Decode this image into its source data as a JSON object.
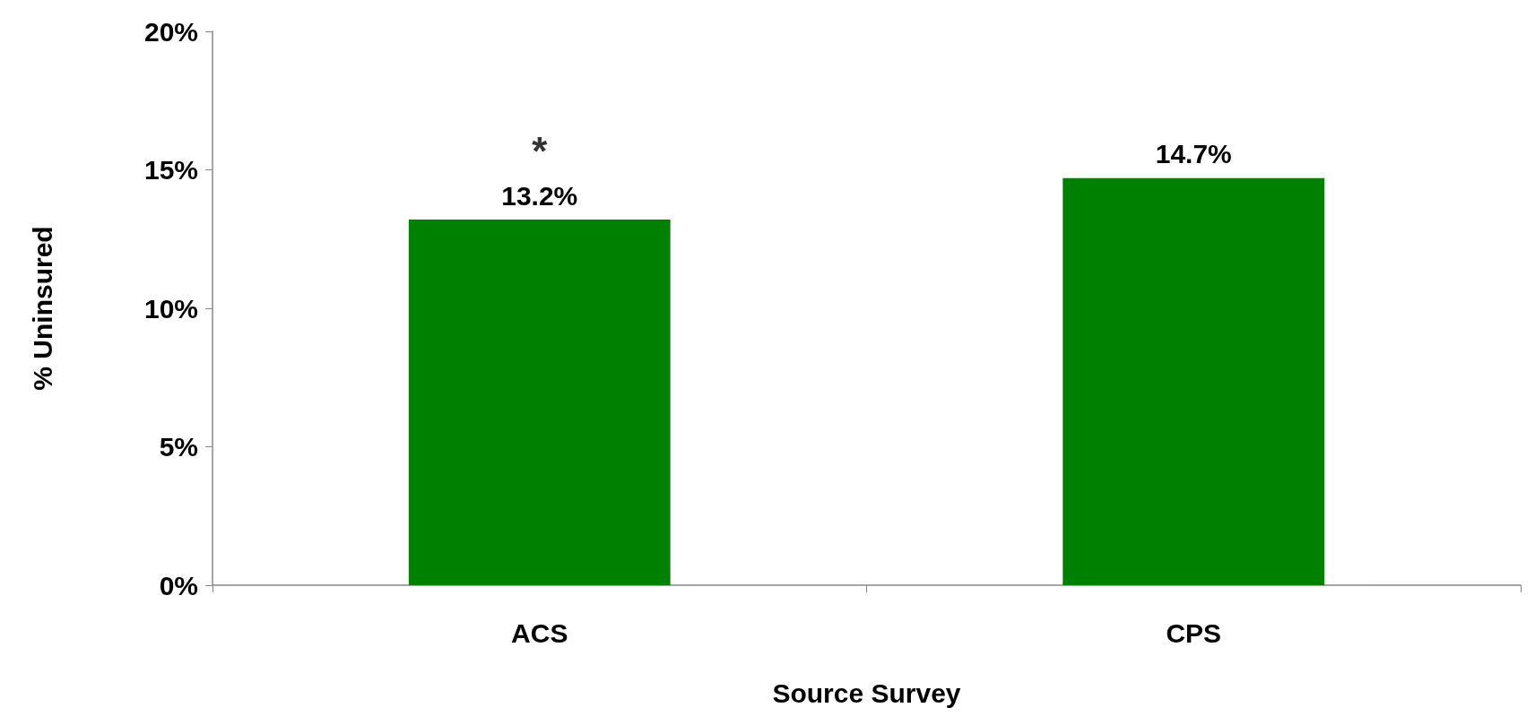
{
  "chart_data": {
    "type": "bar",
    "xlabel": "Source Survey",
    "ylabel": "% Uninsured",
    "categories": [
      "ACS",
      "CPS"
    ],
    "values": [
      13.2,
      14.7
    ],
    "color": "#008000",
    "value_labels": [
      "13.2%",
      "14.7%"
    ],
    "annotations": [
      {
        "text": "*",
        "x": "ACS",
        "y": 13.2
      }
    ],
    "ylim": [
      0,
      20
    ],
    "yticks": [
      {
        "value": 0,
        "label": "0%"
      },
      {
        "value": 5,
        "label": "5%"
      },
      {
        "value": 10,
        "label": "10%"
      },
      {
        "value": 15,
        "label": "15%"
      },
      {
        "value": 20,
        "label": "20%"
      }
    ],
    "grid": false
  }
}
